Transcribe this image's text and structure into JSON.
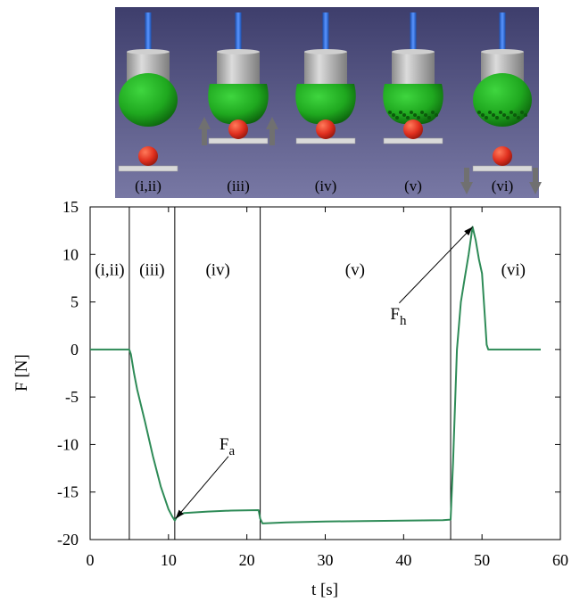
{
  "illustration": {
    "stages": [
      {
        "label": "(i,ii)",
        "sphere_state": "smooth",
        "plate_state": "low",
        "arrows": "none"
      },
      {
        "label": "(iii)",
        "sphere_state": "smooth",
        "plate_state": "contact",
        "arrows": "up"
      },
      {
        "label": "(iv)",
        "sphere_state": "smooth",
        "plate_state": "contact",
        "arrows": "none"
      },
      {
        "label": "(v)",
        "sphere_state": "rough",
        "plate_state": "contact",
        "arrows": "none"
      },
      {
        "label": "(vi)",
        "sphere_state": "rough",
        "plate_state": "low",
        "arrows": "down"
      }
    ],
    "colors": {
      "background": "#4a4a78",
      "shaft": "#2f6ee0",
      "sphere": "#1fa81f",
      "ball": "#e0301f",
      "cylinder": "#b8b8b8",
      "plate": "#d9d9d9",
      "arrow": "#707070"
    }
  },
  "chart_data": {
    "type": "line",
    "xlabel": "t [s]",
    "ylabel": "F [N]",
    "xlim": [
      0,
      60
    ],
    "ylim": [
      -20,
      15
    ],
    "xticks": [
      0,
      10,
      20,
      30,
      40,
      50,
      60
    ],
    "yticks": [
      15,
      10,
      5,
      0,
      -5,
      -10,
      -15,
      -20
    ],
    "grid": false,
    "series": [
      {
        "color": "#2e8b57",
        "x": [
          0,
          5,
          5.2,
          5.6,
          6,
          7,
          8,
          9,
          10,
          10.5,
          10.8,
          11,
          11.5,
          12,
          15,
          18,
          21.5,
          21.7,
          22,
          25,
          30,
          35,
          40,
          45,
          46,
          46.3,
          46.8,
          47.3,
          47.8,
          48.3,
          48.8,
          49.2,
          49.6,
          50,
          50.4,
          50.6,
          50.8,
          51,
          57.5
        ],
        "y": [
          0,
          0,
          -0.5,
          -2.5,
          -4.2,
          -7.6,
          -11.2,
          -14.4,
          -16.8,
          -17.6,
          -18.0,
          -17.7,
          -17.4,
          -17.2,
          -17.05,
          -16.95,
          -16.9,
          -17.8,
          -18.3,
          -18.2,
          -18.1,
          -18.05,
          -18.0,
          -17.95,
          -17.9,
          -12,
          0,
          5,
          7.5,
          10,
          12.9,
          11.5,
          9.5,
          8,
          3,
          0.5,
          0,
          0,
          0
        ]
      }
    ],
    "vertical_lines": [
      5,
      10.8,
      21.7,
      46
    ],
    "phase_labels": [
      {
        "text": "(i,ii)",
        "x": 2.5,
        "y": 7.8
      },
      {
        "text": "(iii)",
        "x": 7.9,
        "y": 7.8
      },
      {
        "text": "(iv)",
        "x": 16.3,
        "y": 7.8
      },
      {
        "text": "(v)",
        "x": 33.8,
        "y": 7.8
      },
      {
        "text": "(vi)",
        "x": 54,
        "y": 7.8
      }
    ],
    "annotations": [
      {
        "text": "F",
        "sub": "a",
        "text_x": 16.5,
        "text_y": -10.5,
        "tip_x": 10.9,
        "tip_y": -17.8
      },
      {
        "text": "F",
        "sub": "h",
        "text_x": 38.3,
        "text_y": 3.2,
        "tip_x": 48.8,
        "tip_y": 12.9
      }
    ]
  }
}
